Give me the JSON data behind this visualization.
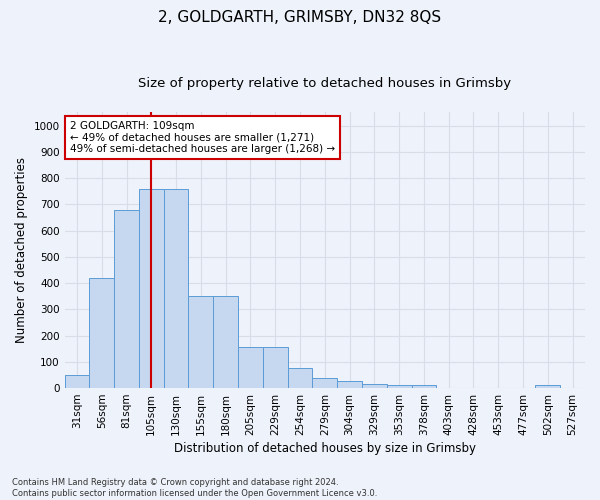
{
  "title": "2, GOLDGARTH, GRIMSBY, DN32 8QS",
  "subtitle": "Size of property relative to detached houses in Grimsby",
  "xlabel": "Distribution of detached houses by size in Grimsby",
  "ylabel": "Number of detached properties",
  "footnote1": "Contains HM Land Registry data © Crown copyright and database right 2024.",
  "footnote2": "Contains public sector information licensed under the Open Government Licence v3.0.",
  "categories": [
    "31sqm",
    "56sqm",
    "81sqm",
    "105sqm",
    "130sqm",
    "155sqm",
    "180sqm",
    "205sqm",
    "229sqm",
    "254sqm",
    "279sqm",
    "304sqm",
    "329sqm",
    "353sqm",
    "378sqm",
    "403sqm",
    "428sqm",
    "453sqm",
    "477sqm",
    "502sqm",
    "527sqm"
  ],
  "values": [
    50,
    420,
    680,
    760,
    760,
    350,
    350,
    155,
    155,
    75,
    40,
    27,
    17,
    10,
    10,
    0,
    0,
    0,
    0,
    12,
    0
  ],
  "bar_color": "#c5d8ef",
  "bar_edge_color": "#5b9bd5",
  "vline_x_index": 3,
  "vline_color": "#cc0000",
  "annotation_text": "2 GOLDGARTH: 109sqm\n← 49% of detached houses are smaller (1,271)\n49% of semi-detached houses are larger (1,268) →",
  "annotation_box_color": "#ffffff",
  "annotation_box_edge": "#cc0000",
  "ylim": [
    0,
    1050
  ],
  "yticks": [
    0,
    100,
    200,
    300,
    400,
    500,
    600,
    700,
    800,
    900,
    1000
  ],
  "background_color": "#eef2fa",
  "grid_color": "#d8dde8",
  "title_fontsize": 11,
  "subtitle_fontsize": 9.5,
  "axis_label_fontsize": 8.5,
  "tick_fontsize": 7.5,
  "footnote_fontsize": 6
}
